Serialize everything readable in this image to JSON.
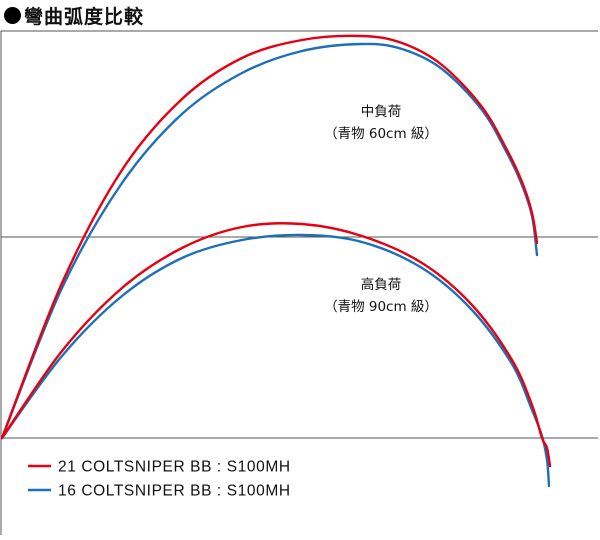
{
  "title": "彎曲弧度比較",
  "chart_data": {
    "type": "line",
    "title": "彎曲弧度比較",
    "xlabel": "",
    "ylabel": "",
    "grid": "horizontal lines",
    "legend_position": "bottom-left",
    "colors": {
      "rod_21": "#e60012",
      "rod_16": "#1c70b8",
      "frame": "#555555"
    },
    "legend": [
      {
        "name": "21 COLTSNIPER BB : S100MH",
        "color": "#e60012"
      },
      {
        "name": "16 COLTSNIPER BB : S100MH",
        "color": "#1c70b8"
      }
    ],
    "groups": [
      {
        "label_line1": "中負荷",
        "label_line2": "（青物 60cm 級）",
        "series": [
          {
            "name": "21 COLTSNIPER BB : S100MH",
            "color": "#e60012",
            "x": [
              0,
              60,
              120,
              180,
              240,
              300,
              360,
              400,
              440,
              480,
              505,
              520,
              530,
              535
            ],
            "y": [
              0,
              155,
              268,
              339,
              380,
              398,
              402,
              395,
              373,
              331,
              288,
              256,
              225,
              195
            ]
          },
          {
            "name": "16 COLTSNIPER BB : S100MH",
            "color": "#1c70b8",
            "x": [
              0,
              60,
              120,
              180,
              240,
              300,
              360,
              400,
              440,
              480,
              505,
              520,
              530,
              535
            ],
            "y": [
              0,
              150,
              255,
              324,
              365,
              387,
              394,
              389,
              369,
              328,
              285,
              253,
              222,
              183
            ]
          }
        ]
      },
      {
        "label_line1": "高負荷",
        "label_line2": "（青物 90cm 級）",
        "series": [
          {
            "name": "21 COLTSNIPER BB : S100MH",
            "color": "#e60012",
            "x": [
              0,
              60,
              120,
              180,
              240,
              300,
              360,
              420,
              470,
              510,
              530,
              540,
              545,
              548
            ],
            "y": [
              0,
              87,
              150,
              190,
              211,
              214,
              202,
              175,
              133,
              78,
              33,
              0,
              -10,
              -28
            ]
          },
          {
            "name": "16 COLTSNIPER BB : S100MH",
            "color": "#1c70b8",
            "x": [
              0,
              60,
              120,
              180,
              240,
              300,
              360,
              420,
              470,
              510,
              530,
              540,
              545,
              547
            ],
            "y": [
              0,
              82,
              142,
              180,
              198,
              203,
              196,
              170,
              128,
              74,
              28,
              2,
              -22,
              -48
            ]
          }
        ]
      }
    ]
  }
}
